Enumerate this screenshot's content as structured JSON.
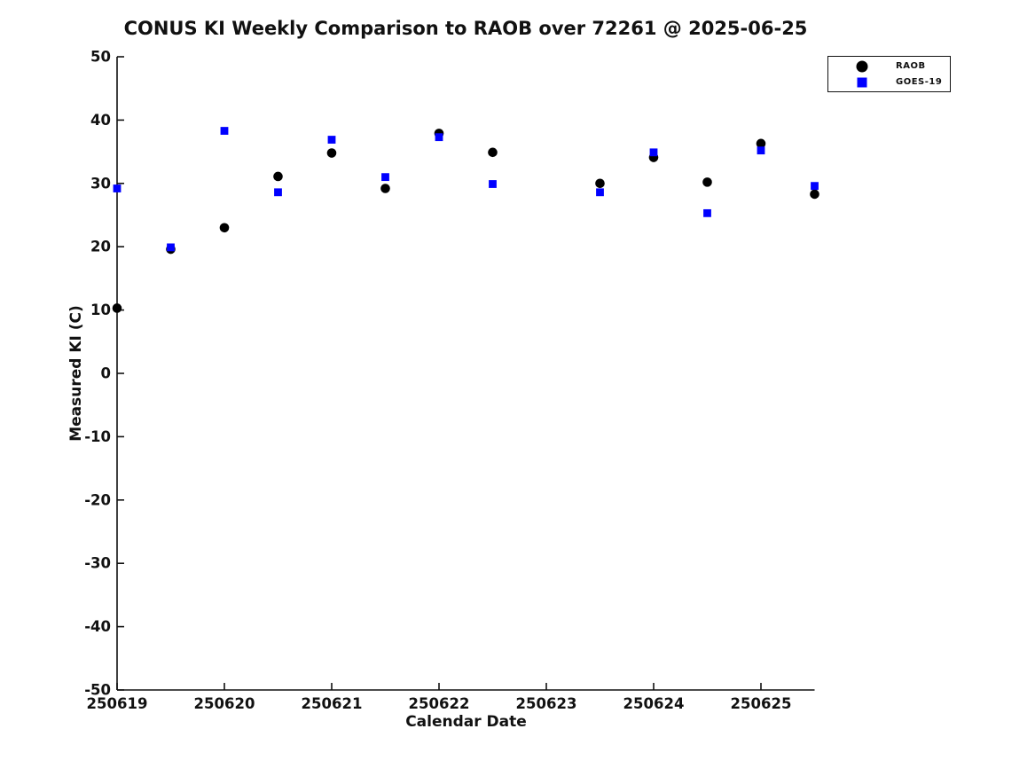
{
  "chart_data": {
    "type": "scatter",
    "title": "CONUS KI Weekly Comparison to RAOB over 72261 @ 2025-06-25",
    "xlabel": "Calendar Date",
    "ylabel": "Measured KI (C)",
    "xlim": [
      250619,
      250625.5
    ],
    "ylim": [
      -50,
      50
    ],
    "xticks": [
      250619,
      250620,
      250621,
      250622,
      250623,
      250624,
      250625
    ],
    "yticks": [
      50,
      40,
      30,
      20,
      10,
      0,
      -10,
      -20,
      -30,
      -40,
      -50
    ],
    "grid": false,
    "legend_position": "top-right-outside",
    "series": [
      {
        "name": "RAOB",
        "marker": "circle",
        "color": "#000000",
        "points": [
          [
            250619.0,
            10.3
          ],
          [
            250619.5,
            19.6
          ],
          [
            250620.0,
            23.0
          ],
          [
            250620.5,
            31.1
          ],
          [
            250621.0,
            34.8
          ],
          [
            250621.5,
            29.2
          ],
          [
            250622.0,
            37.9
          ],
          [
            250622.5,
            34.9
          ],
          [
            250623.5,
            30.0
          ],
          [
            250624.0,
            34.1
          ],
          [
            250624.5,
            30.2
          ],
          [
            250625.0,
            36.3
          ],
          [
            250625.5,
            28.3
          ]
        ]
      },
      {
        "name": "GOES-19",
        "marker": "square",
        "color": "#0000ff",
        "points": [
          [
            250619.0,
            29.2
          ],
          [
            250619.5,
            19.9
          ],
          [
            250620.0,
            38.3
          ],
          [
            250620.5,
            28.6
          ],
          [
            250621.0,
            36.9
          ],
          [
            250621.5,
            31.0
          ],
          [
            250622.0,
            37.3
          ],
          [
            250622.5,
            29.9
          ],
          [
            250623.5,
            28.6
          ],
          [
            250624.0,
            34.9
          ],
          [
            250624.5,
            25.3
          ],
          [
            250625.0,
            35.2
          ],
          [
            250625.5,
            29.6
          ]
        ]
      }
    ]
  }
}
